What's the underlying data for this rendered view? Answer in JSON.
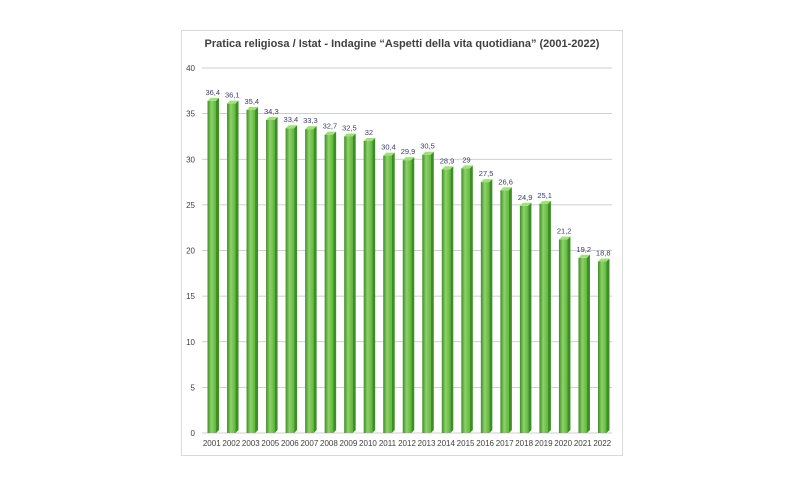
{
  "chart_data": {
    "type": "bar",
    "title": "Pratica religiosa / Istat - Indagine “Aspetti della vita quotidiana” (2001-2022)",
    "categories": [
      "2001",
      "2002",
      "2003",
      "2005",
      "2006",
      "2007",
      "2008",
      "2009",
      "2010",
      "2011",
      "2012",
      "2013",
      "2014",
      "2015",
      "2016",
      "2017",
      "2018",
      "2019",
      "2020",
      "2021",
      "2022"
    ],
    "values": [
      36.4,
      36.1,
      35.4,
      34.3,
      33.4,
      33.3,
      32.7,
      32.5,
      32,
      30.4,
      29.9,
      30.5,
      28.9,
      29,
      27.5,
      26.6,
      24.9,
      25.1,
      21.2,
      19.2,
      18.8
    ],
    "data_labels": [
      "36,4",
      "36,1",
      "35,4",
      "34,3",
      "33,4",
      "33,3",
      "32,7",
      "32,5",
      "32",
      "30,4",
      "29,9",
      "30,5",
      "28,9",
      "29",
      "27,5",
      "26,6",
      "24,9",
      "25,1",
      "21,2",
      "19,2",
      "18,8"
    ],
    "ylim": [
      0,
      40
    ],
    "yticks": [
      0,
      5,
      10,
      15,
      20,
      25,
      30,
      35,
      40
    ],
    "grid": true,
    "xlabel": "",
    "ylabel": "",
    "colors": {
      "bar_light": "#8fd16a",
      "bar_mid": "#5cb83a",
      "bar_dark": "#3d8f25",
      "bar_top": "#a6dc86",
      "gridline": "#bfbfbf",
      "axis_text": "#404040",
      "label_text": "#3b3b6b"
    }
  }
}
